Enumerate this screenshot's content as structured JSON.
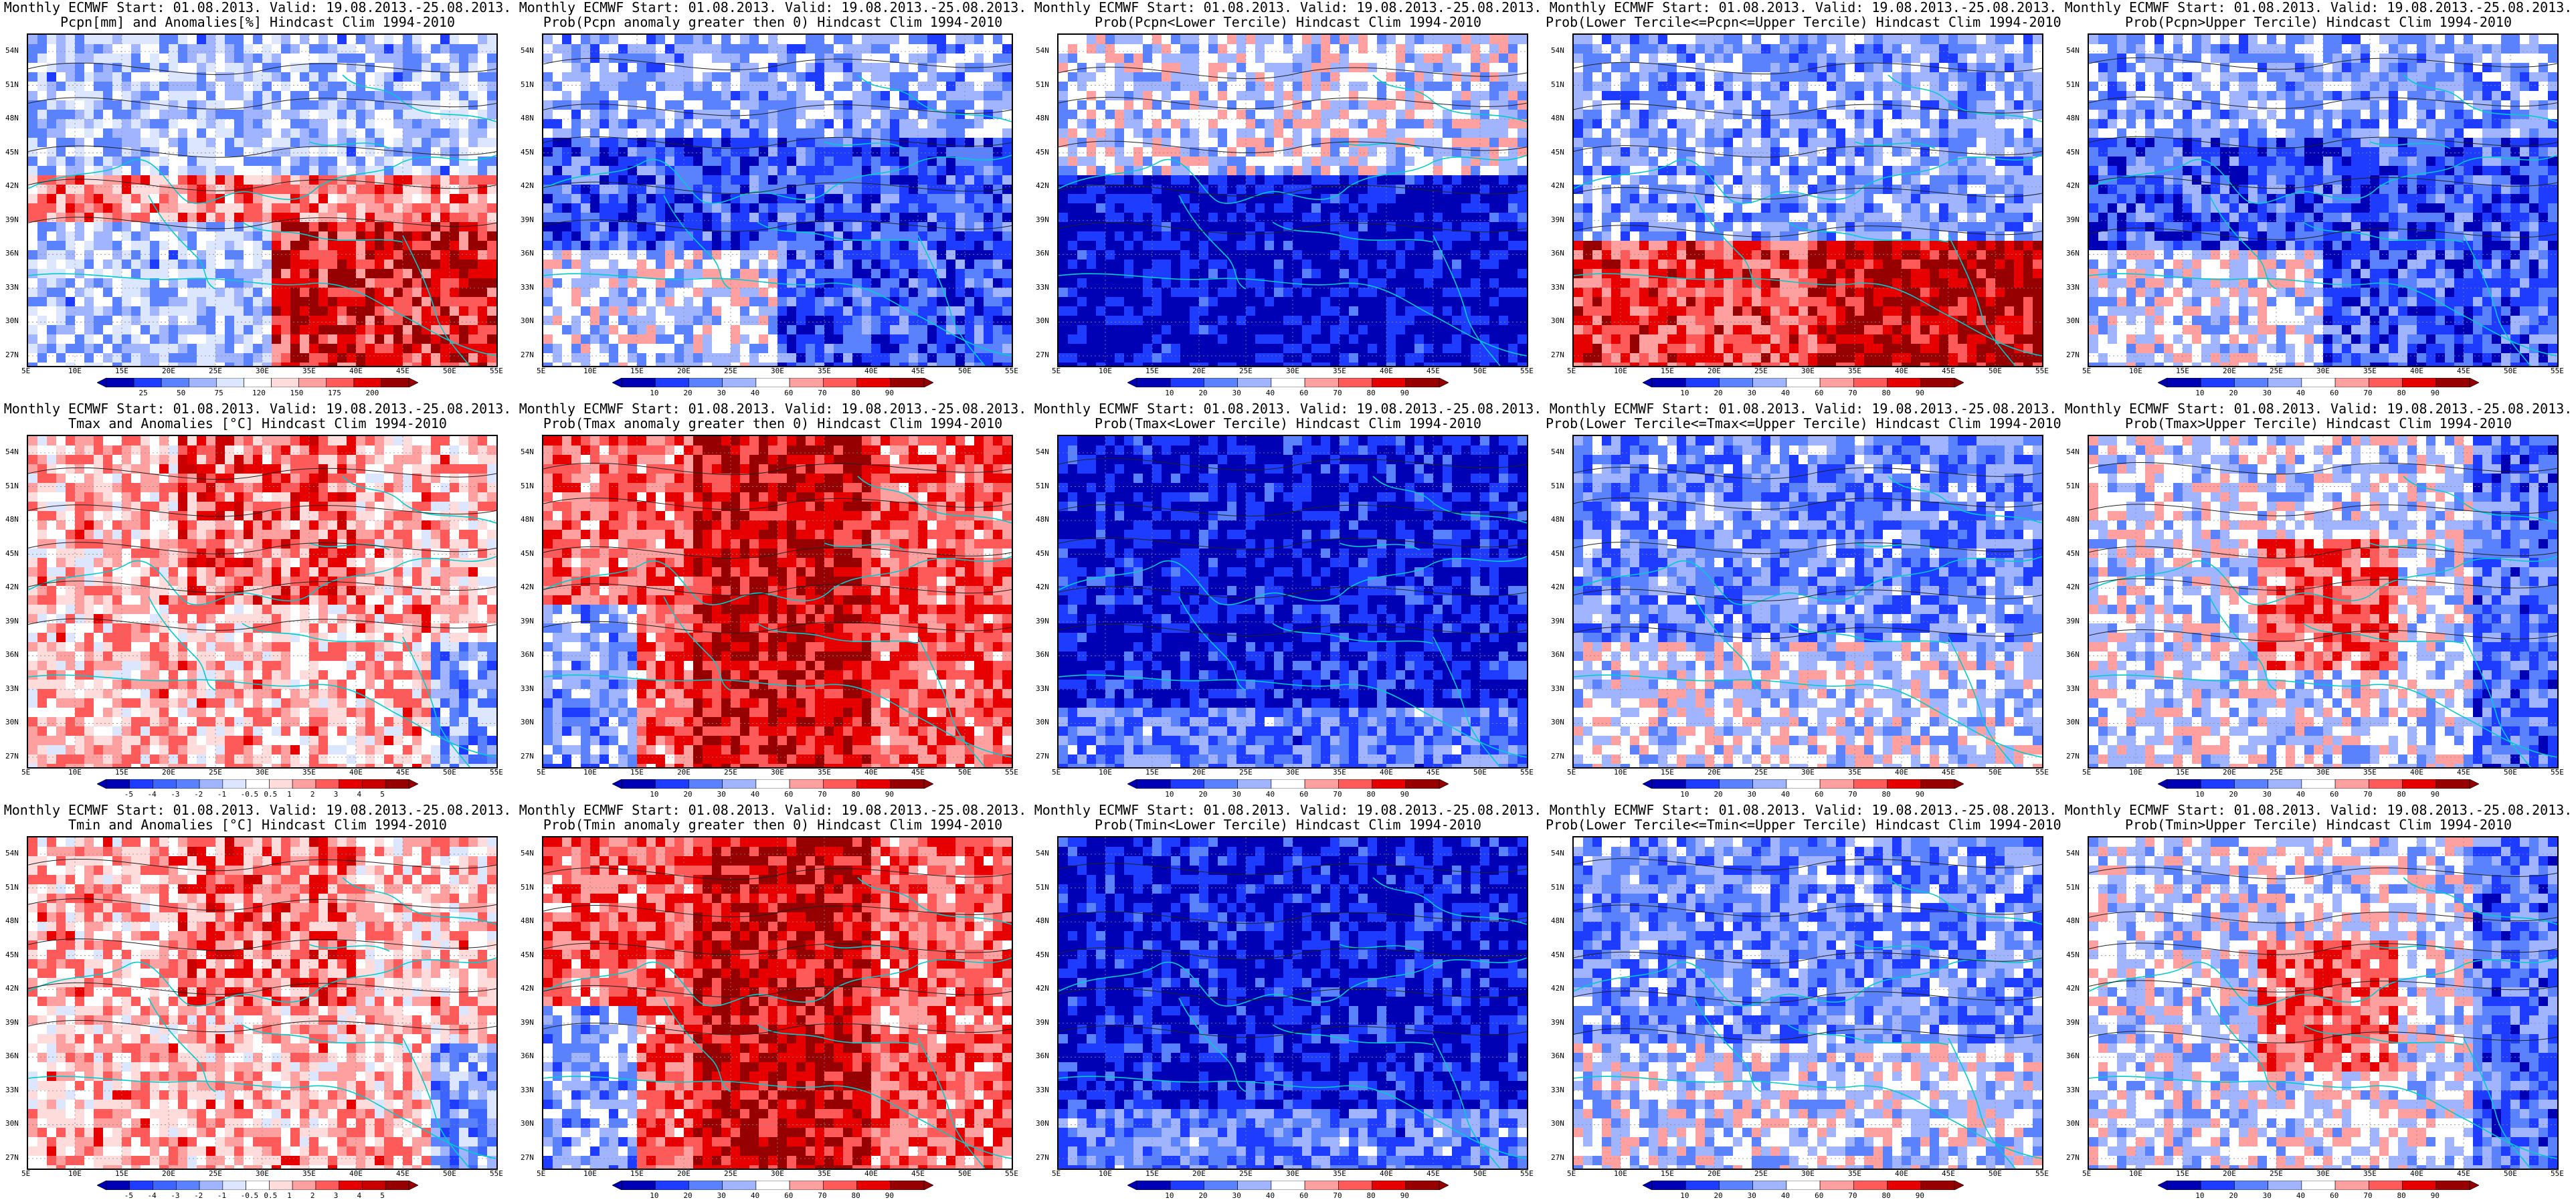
{
  "figure": {
    "rows": [
      [
        {
          "id": "pcpn-anom",
          "line1": "Monthly ECMWF Start: 01.08.2013. Valid: 19.08.2013.-25.08.2013.",
          "line2": "Pcpn[mm] and Anomalies[%] Hindcast Clim 1994-2010",
          "palette": "anomaly_precip",
          "colorbar": "pcpn",
          "theme": "precip_anom"
        },
        {
          "id": "pcpn-prob-gt0",
          "line1": "Monthly ECMWF Start: 01.08.2013. Valid: 19.08.2013.-25.08.2013.",
          "line2": "Prob(Pcpn anomaly greater then 0) Hindcast Clim 1994-2010",
          "palette": "prob",
          "colorbar": "prob",
          "theme": "blue_mostly"
        },
        {
          "id": "pcpn-prob-lower",
          "line1": "Monthly ECMWF Start: 01.08.2013. Valid: 19.08.2013.-25.08.2013.",
          "line2": "Prob(Pcpn<Lower Tercile) Hindcast Clim 1994-2010",
          "palette": "prob",
          "colorbar": "prob",
          "theme": "blue_deep_south"
        },
        {
          "id": "pcpn-prob-middle",
          "line1": "Monthly ECMWF Start: 01.08.2013. Valid: 19.08.2013.-25.08.2013.",
          "line2": "Prob(Lower Tercile<=Pcpn<=Upper Tercile) Hindcast Clim 1994-2010",
          "palette": "prob",
          "colorbar": "prob",
          "theme": "red_south"
        },
        {
          "id": "pcpn-prob-upper",
          "line1": "Monthly ECMWF Start: 01.08.2013. Valid: 19.08.2013.-25.08.2013.",
          "line2": "Prob(Pcpn>Upper Tercile) Hindcast Clim 1994-2010",
          "palette": "prob",
          "colorbar": "prob",
          "theme": "blue_mostly"
        }
      ],
      [
        {
          "id": "tmax-anom",
          "line1": "Monthly ECMWF Start: 01.08.2013. Valid: 19.08.2013.-25.08.2013.",
          "line2": "Tmax and Anomalies [°C] Hindcast Clim 1994-2010",
          "palette": "anomaly_temp",
          "colorbar": "temp",
          "theme": "light_red"
        },
        {
          "id": "tmax-prob-gt0",
          "line1": "Monthly ECMWF Start: 01.08.2013. Valid: 19.08.2013.-25.08.2013.",
          "line2": "Prob(Tmax anomaly greater then 0) Hindcast Clim 1994-2010",
          "palette": "prob",
          "colorbar": "prob",
          "theme": "red_strong"
        },
        {
          "id": "tmax-prob-lower",
          "line1": "Monthly ECMWF Start: 01.08.2013. Valid: 19.08.2013.-25.08.2013.",
          "line2": "Prob(Tmax<Lower Tercile) Hindcast Clim 1994-2010",
          "palette": "prob",
          "colorbar": "prob",
          "theme": "blue_deep"
        },
        {
          "id": "tmax-prob-middle",
          "line1": "Monthly ECMWF Start: 01.08.2013. Valid: 19.08.2013.-25.08.2013.",
          "line2": "Prob(Lower Tercile<=Tmax<=Upper Tercile) Hindcast Clim 1994-2010",
          "palette": "prob",
          "colorbar": "prob",
          "theme": "blue_mixed"
        },
        {
          "id": "tmax-prob-upper",
          "line1": "Monthly ECMWF Start: 01.08.2013. Valid: 19.08.2013.-25.08.2013.",
          "line2": "Prob(Tmax>Upper Tercile) Hindcast Clim 1994-2010",
          "palette": "prob",
          "colorbar": "prob",
          "theme": "red_mixed"
        }
      ],
      [
        {
          "id": "tmin-anom",
          "line1": "Monthly ECMWF Start: 01.08.2013. Valid: 19.08.2013.-25.08.2013.",
          "line2": "Tmin and Anomalies [°C] Hindcast Clim 1994-2010",
          "palette": "anomaly_temp",
          "colorbar": "temp",
          "theme": "light_red"
        },
        {
          "id": "tmin-prob-gt0",
          "line1": "Monthly ECMWF Start: 01.08.2013. Valid: 19.08.2013.-25.08.2013.",
          "line2": "Prob(Tmin anomaly greater then 0) Hindcast Clim 1994-2010",
          "palette": "prob",
          "colorbar": "prob",
          "theme": "red_strong"
        },
        {
          "id": "tmin-prob-lower",
          "line1": "Monthly ECMWF Start: 01.08.2013. Valid: 19.08.2013.-25.08.2013.",
          "line2": "Prob(Tmin<Lower Tercile) Hindcast Clim 1994-2010",
          "palette": "prob",
          "colorbar": "prob",
          "theme": "blue_deep"
        },
        {
          "id": "tmin-prob-middle",
          "line1": "Monthly ECMWF Start: 01.08.2013. Valid: 19.08.2013.-25.08.2013.",
          "line2": "Prob(Lower Tercile<=Tmin<=Upper Tercile) Hindcast Clim 1994-2010",
          "palette": "prob",
          "colorbar": "prob",
          "theme": "blue_mixed"
        },
        {
          "id": "tmin-prob-upper",
          "line1": "Monthly ECMWF Start: 01.08.2013. Valid: 19.08.2013.-25.08.2013.",
          "line2": "Prob(Tmin>Upper Tercile) Hindcast Clim 1994-2010",
          "palette": "prob",
          "colorbar": "prob",
          "theme": "red_mixed"
        }
      ]
    ],
    "latitudes": [
      "54N",
      "51N",
      "48N",
      "45N",
      "42N",
      "39N",
      "36N",
      "33N",
      "30N",
      "27N"
    ],
    "longitudes": [
      "5E",
      "10E",
      "15E",
      "20E",
      "25E",
      "30E",
      "35E",
      "40E",
      "45E",
      "50E",
      "55E"
    ],
    "colorbars": {
      "pcpn": {
        "labels": [
          "25",
          "50",
          "75",
          "120",
          "150",
          "175",
          "200"
        ],
        "colors": [
          "#0000b4",
          "#1e3cff",
          "#5a82ff",
          "#a0b4ff",
          "#dce6ff",
          "#ffffff",
          "#ffdcdc",
          "#ffa0a0",
          "#ff5a5a",
          "#e60000",
          "#960000"
        ]
      },
      "prob": {
        "labels": [
          "10",
          "20",
          "30",
          "40",
          "60",
          "70",
          "80",
          "90"
        ],
        "colors": [
          "#0000b4",
          "#1e3cff",
          "#5a82ff",
          "#a0b4ff",
          "#ffffff",
          "#ffa0a0",
          "#ff5a5a",
          "#e60000",
          "#960000"
        ]
      },
      "temp": {
        "labels": [
          "-5",
          "-4",
          "-3",
          "-2",
          "-1",
          "-0.5",
          "0.5",
          "1",
          "2",
          "3",
          "4",
          "5"
        ],
        "colors": [
          "#0000b4",
          "#1e3cff",
          "#3c64ff",
          "#5a82ff",
          "#a0b4ff",
          "#dce6ff",
          "#ffffff",
          "#ffdcdc",
          "#ffa0a0",
          "#ff5a5a",
          "#e60000",
          "#c80000",
          "#960000"
        ]
      }
    },
    "colors": {
      "coastline": "#00cccc",
      "contour": "#222222"
    }
  }
}
